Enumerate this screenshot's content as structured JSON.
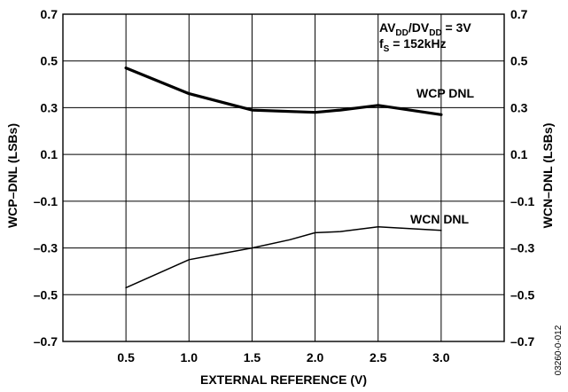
{
  "chart_data": {
    "type": "line",
    "xlabel": "EXTERNAL REFERENCE (V)",
    "ylabel_left": "WCP–DNL (LSBs)",
    "ylabel_right": "WCN–DNL (LSBs)",
    "xlim": [
      0.0,
      3.5
    ],
    "ylim": [
      -0.7,
      0.7
    ],
    "x_ticks": [
      0.5,
      1.0,
      1.5,
      2.0,
      2.5,
      3.0
    ],
    "x_tick_labels": [
      "0.5",
      "1.0",
      "1.5",
      "2.0",
      "2.5",
      "3.0"
    ],
    "y_ticks": [
      0.7,
      0.5,
      0.3,
      0.1,
      -0.1,
      -0.3,
      -0.5,
      -0.7
    ],
    "y_tick_labels": [
      "0.7",
      "0.5",
      "0.3",
      "0.1",
      "–0.1",
      "–0.3",
      "–0.5",
      "–0.7"
    ],
    "grid": true,
    "series": [
      {
        "name": "WCP DNL",
        "x": [
          0.5,
          1.0,
          1.5,
          2.0,
          2.2,
          2.5,
          3.0
        ],
        "y": [
          0.47,
          0.36,
          0.29,
          0.28,
          0.29,
          0.31,
          0.27
        ]
      },
      {
        "name": "WCN DNL",
        "x": [
          0.5,
          1.0,
          1.5,
          1.8,
          2.0,
          2.2,
          2.5,
          3.0
        ],
        "y": [
          -0.47,
          -0.35,
          -0.3,
          -0.265,
          -0.235,
          -0.23,
          -0.21,
          -0.225
        ]
      }
    ],
    "annotations": {
      "conditions_line1": {
        "a": "AV",
        "b": "DD",
        "c": "/DV",
        "d": "DD",
        "e": " = 3V"
      },
      "conditions_line2": {
        "a": "f",
        "b": "S",
        "c": " = 152kHz"
      }
    },
    "figure_code": "03260-0-012"
  }
}
